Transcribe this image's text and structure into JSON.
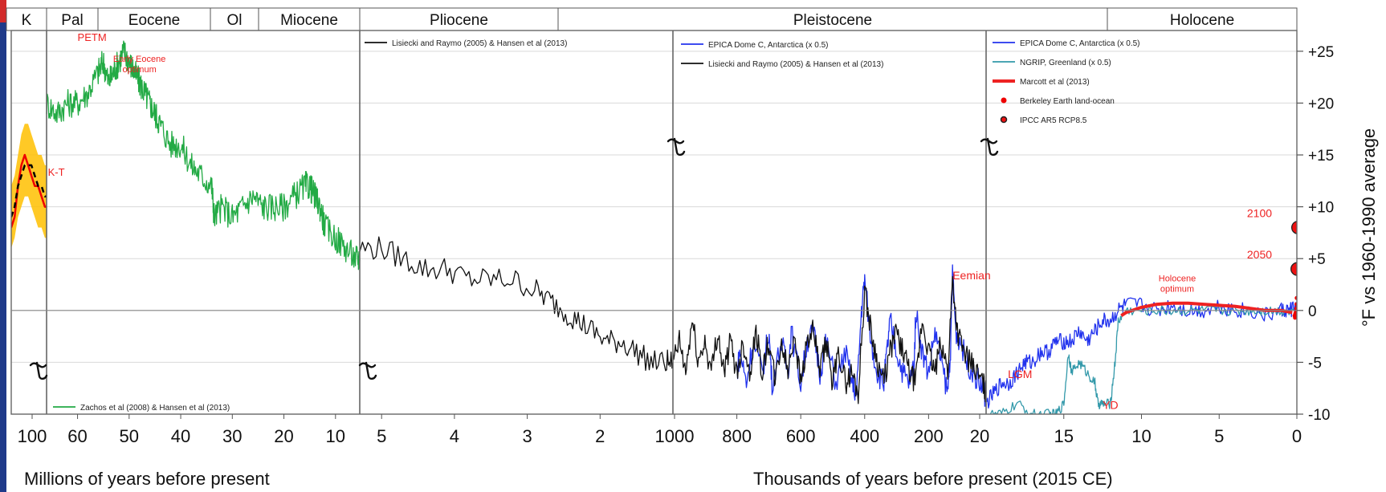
{
  "chart_data": {
    "type": "line",
    "title": "",
    "eras": [
      "K",
      "Pal",
      "Eocene",
      "Ol",
      "Miocene",
      "Pliocene",
      "Pleistocene",
      "Holocene"
    ],
    "y_right_label": "°F vs 1960-1990 average",
    "ylim": [
      -10,
      27
    ],
    "y_ticks": [
      "+25",
      "+20",
      "+15",
      "+10",
      "+5",
      "0",
      "-5",
      "-10"
    ],
    "y_tick_values": [
      25,
      20,
      15,
      10,
      5,
      0,
      -5,
      -10
    ],
    "xlabels": [
      "Millions of years before present",
      "Thousands of years before present (2015 CE)"
    ],
    "panels": [
      {
        "id": "cretaceous",
        "x_ticks": [
          "100"
        ],
        "xlim": [
          108,
          66
        ],
        "series": [
          {
            "name": "",
            "color": "#ffc000",
            "type": "band",
            "x": [
              108,
              104,
              100,
              96,
              92,
              88,
              84,
              80,
              76,
              72,
              68,
              66
            ],
            "low": [
              6,
              7,
              9,
              10,
              11,
              11,
              10,
              9,
              8,
              8,
              7,
              7
            ],
            "high": [
              12,
              13,
              15,
              17,
              18,
              18,
              17,
              16,
              15,
              15,
              14,
              14
            ]
          },
          {
            "name": "",
            "color": "#ee0000",
            "x": [
              108,
              104,
              100,
              96,
              92,
              88,
              84,
              80,
              76,
              72,
              68,
              66
            ],
            "y": [
              8,
              9,
              12,
              14,
              15,
              14,
              13,
              12,
              12,
              11,
              10,
              10
            ]
          },
          {
            "name": "",
            "color": "#000000",
            "dashed": true,
            "x": [
              108,
              104,
              100,
              96,
              92,
              88,
              84,
              80,
              76,
              72,
              68,
              66
            ],
            "y": [
              9,
              10,
              12,
              13,
              14,
              14,
              14,
              13,
              12,
              12,
              11,
              11
            ]
          }
        ],
        "annotations": [
          {
            "text": "K-T",
            "x": 64.5,
            "y": 13
          }
        ]
      },
      {
        "id": "cenozoic",
        "x_ticks": [
          "60",
          "50",
          "40",
          "30",
          "20",
          "10"
        ],
        "x_tick_values": [
          60,
          50,
          40,
          30,
          20,
          10
        ],
        "xlim": [
          66,
          5.3
        ],
        "series": [
          {
            "name": "Zachos et al (2008) & Hansen et al (2013)",
            "color": "#22aa44",
            "x": [
              66,
              64,
              62,
              60,
              58,
              56,
              55,
              54,
              53,
              52,
              51,
              50,
              49,
              48,
              47,
              46,
              45,
              44,
              42,
              40,
              38,
              36,
              34,
              33.5,
              32,
              30,
              28,
              26,
              24,
              22,
              20,
              18,
              16,
              15,
              14,
              13,
              12,
              10,
              8,
              6,
              5.3
            ],
            "y": [
              20,
              19,
              20,
              20,
              21,
              23,
              24,
              22,
              23,
              24,
              25,
              24,
              23,
              22,
              21,
              20,
              19,
              18,
              16,
              16,
              14,
              13,
              12,
              9,
              10,
              9,
              10,
              11,
              10,
              10,
              10,
              11,
              12,
              12,
              11,
              10,
              8,
              7,
              6,
              5,
              5
            ]
          }
        ],
        "annotations": [
          {
            "text": "PETM",
            "x": 60,
            "y": 26
          },
          {
            "text": "Early Eocene optimum",
            "x": 48,
            "y": 24
          }
        ]
      },
      {
        "id": "pliocene",
        "x_ticks": [
          "5",
          "4",
          "3",
          "2",
          "1000"
        ],
        "x_tick_values": [
          5,
          4,
          3,
          2,
          1
        ],
        "xlim": [
          5.3,
          1
        ],
        "series": [
          {
            "name": "Lisiecki and Raymo (2005) & Hansen et al (2013)",
            "color": "#111111",
            "x": [
              5.3,
              5.0,
              4.7,
              4.4,
              4.1,
              3.8,
              3.5,
              3.2,
              2.9,
              2.7,
              2.5,
              2.3,
              2.1,
              1.9,
              1.7,
              1.5,
              1.3,
              1.1,
              1.0
            ],
            "y": [
              6,
              6,
              5,
              4,
              4,
              3,
              3,
              3,
              2,
              1,
              0,
              -1,
              -2,
              -3,
              -3,
              -4,
              -5,
              -5,
              -5
            ]
          }
        ]
      },
      {
        "id": "pleistocene",
        "x_ticks": [
          "800",
          "600",
          "400",
          "200",
          "20"
        ],
        "x_tick_values": [
          800,
          600,
          400,
          200,
          20
        ],
        "xlim": [
          1000,
          20
        ],
        "series": [
          {
            "name": "EPICA Dome C, Antarctica (x 0.5)",
            "color": "#2233ee",
            "x": [
              800,
              790,
              770,
              750,
              720,
              700,
              690,
              660,
              640,
              630,
              600,
              580,
              560,
              540,
              520,
              490,
              460,
              440,
              425,
              410,
              400,
              380,
              360,
              340,
              330,
              320,
              300,
              280,
              260,
              245,
              240,
              220,
              200,
              180,
              160,
              140,
              130,
              125,
              115,
              100,
              80,
              60,
              40,
              25,
              20
            ],
            "y": [
              -6,
              -4,
              -7,
              -3,
              -6,
              -2,
              -7,
              -3,
              -6,
              -2,
              -7,
              -3,
              -2,
              -6,
              -3,
              -7,
              -4,
              -7,
              -8,
              0,
              3,
              -3,
              -6,
              -7,
              -4,
              -1,
              -4,
              -6,
              -7,
              -5,
              0,
              -4,
              -6,
              -2,
              -5,
              -8,
              -3,
              4,
              -2,
              -3,
              -5,
              -6,
              -7,
              -8,
              -9
            ]
          },
          {
            "name": "Lisiecki and Raymo (2005) & Hansen et al (2013)",
            "color": "#111111",
            "x": [
              1000,
              980,
              960,
              940,
              920,
              900,
              880,
              860,
              840,
              820,
              800,
              780,
              760,
              740,
              720,
              700,
              680,
              660,
              640,
              620,
              600,
              580,
              560,
              540,
              520,
              500,
              480,
              460,
              440,
              420,
              400,
              380,
              360,
              340,
              320,
              300,
              280,
              260,
              240,
              220,
              200,
              180,
              160,
              140,
              125,
              110,
              90,
              70,
              50,
              30,
              20
            ],
            "y": [
              -5,
              -3,
              -6,
              -1,
              -5,
              -3,
              -6,
              -2,
              -6,
              -3,
              -6,
              -3,
              -6,
              -2,
              -6,
              -3,
              -7,
              -3,
              -6,
              -2,
              -7,
              -3,
              -2,
              -6,
              -3,
              -7,
              -4,
              -7,
              -6,
              -8,
              2,
              -2,
              -5,
              -7,
              -4,
              -2,
              -4,
              -6,
              -7,
              -1,
              -4,
              -6,
              -3,
              -6,
              3,
              -2,
              -4,
              -5,
              -6,
              -7,
              -8
            ]
          }
        ],
        "annotations": [
          {
            "text": "Eemian",
            "x": 125,
            "y": 3
          }
        ]
      },
      {
        "id": "holocene",
        "x_ticks": [
          "15",
          "10",
          "5",
          "0"
        ],
        "x_tick_values": [
          15,
          10,
          5,
          0
        ],
        "xlim": [
          20,
          0
        ],
        "series": [
          {
            "name": "EPICA Dome C, Antarctica (x 0.5)",
            "color": "#2233ee",
            "x": [
              20,
              19.5,
              19,
              18.5,
              18,
              17.5,
              17,
              16.5,
              16,
              15.5,
              15,
              14.5,
              14,
              13.5,
              13,
              12.5,
              12,
              11.5,
              11,
              10,
              9,
              8,
              7,
              6,
              5,
              4,
              3,
              2,
              1,
              0.5,
              0
            ],
            "y": [
              -9,
              -8,
              -7,
              -7,
              -6,
              -5,
              -5,
              -4,
              -4,
              -3,
              -3,
              -3,
              -2,
              -3,
              -2,
              -1,
              -1,
              0,
              0.5,
              0.5,
              0,
              0.5,
              0,
              0,
              0.5,
              0,
              0,
              -0.5,
              0,
              0,
              0.5
            ]
          },
          {
            "name": "NGRIP, Greenland (x 0.5)",
            "color": "#3399aa",
            "x": [
              20,
              19,
              18,
              17,
              16,
              15.5,
              15,
              14.7,
              14.5,
              14,
              13.5,
              13,
              12.8,
              12.5,
              12,
              11.7,
              11.5,
              11,
              10,
              9,
              8,
              7,
              6,
              5,
              4,
              3,
              2,
              1,
              0
            ],
            "y": [
              -10,
              -10,
              -9,
              -10,
              -10,
              -10,
              -9,
              -4,
              -6,
              -5,
              -6,
              -7,
              -9,
              -9,
              -9,
              -5,
              -1,
              0,
              0,
              0,
              0,
              0,
              0,
              0,
              0,
              0,
              0,
              0,
              0
            ]
          },
          {
            "name": "Marcott et al (2013)",
            "color": "#ee2222",
            "width": 4,
            "x": [
              11.3,
              11,
              10,
              9,
              8,
              7,
              6,
              5,
              4,
              3,
              2,
              1,
              0.3
            ],
            "y": [
              -0.5,
              -0.2,
              0.3,
              0.6,
              0.7,
              0.7,
              0.6,
              0.5,
              0.4,
              0.2,
              0,
              0,
              -0.2
            ]
          },
          {
            "name": "Berkeley Earth land-ocean",
            "color": "#ee0000",
            "type": "points",
            "x": [
              0.15,
              0.12,
              0.1,
              0.08,
              0.06,
              0.04,
              0.02,
              0.01
            ],
            "y": [
              -0.5,
              -0.7,
              -0.3,
              -0.6,
              -0.1,
              0.2,
              0.6,
              1.2
            ]
          },
          {
            "name": "IPCC AR5 RCP8.5",
            "color": "#ee1111",
            "type": "points",
            "x": [
              -0.035,
              -0.085
            ],
            "y": [
              4,
              8
            ]
          }
        ],
        "annotations": [
          {
            "text": "LGM",
            "x": 18.6,
            "y": -6.5
          },
          {
            "text": "YD",
            "x": 12.5,
            "y": -9.5
          },
          {
            "text": "Holocene optimum",
            "x": 7.7,
            "y": 2.8
          },
          {
            "text": "2100",
            "x": 1.6,
            "y": 9
          },
          {
            "text": "2050",
            "x": 1.6,
            "y": 5
          }
        ]
      }
    ],
    "legend": {
      "cenozoic_bottom": [
        "Zachos et al (2008) & Hansen et al (2013)"
      ],
      "pliocene_top": [
        "Lisiecki and Raymo (2005) & Hansen et al (2013)"
      ],
      "pleistocene_top": [
        "EPICA Dome C, Antarctica (x 0.5)",
        "Lisiecki and Raymo (2005) & Hansen et al (2013)"
      ],
      "holocene_top": [
        "EPICA Dome C, Antarctica (x 0.5)",
        "NGRIP, Greenland (x 0.5)",
        "Marcott et al (2013)",
        "Berkeley Earth land-ocean",
        "IPCC AR5 RCP8.5"
      ]
    },
    "legend_placement": "top-left of each panel",
    "grid": true
  }
}
